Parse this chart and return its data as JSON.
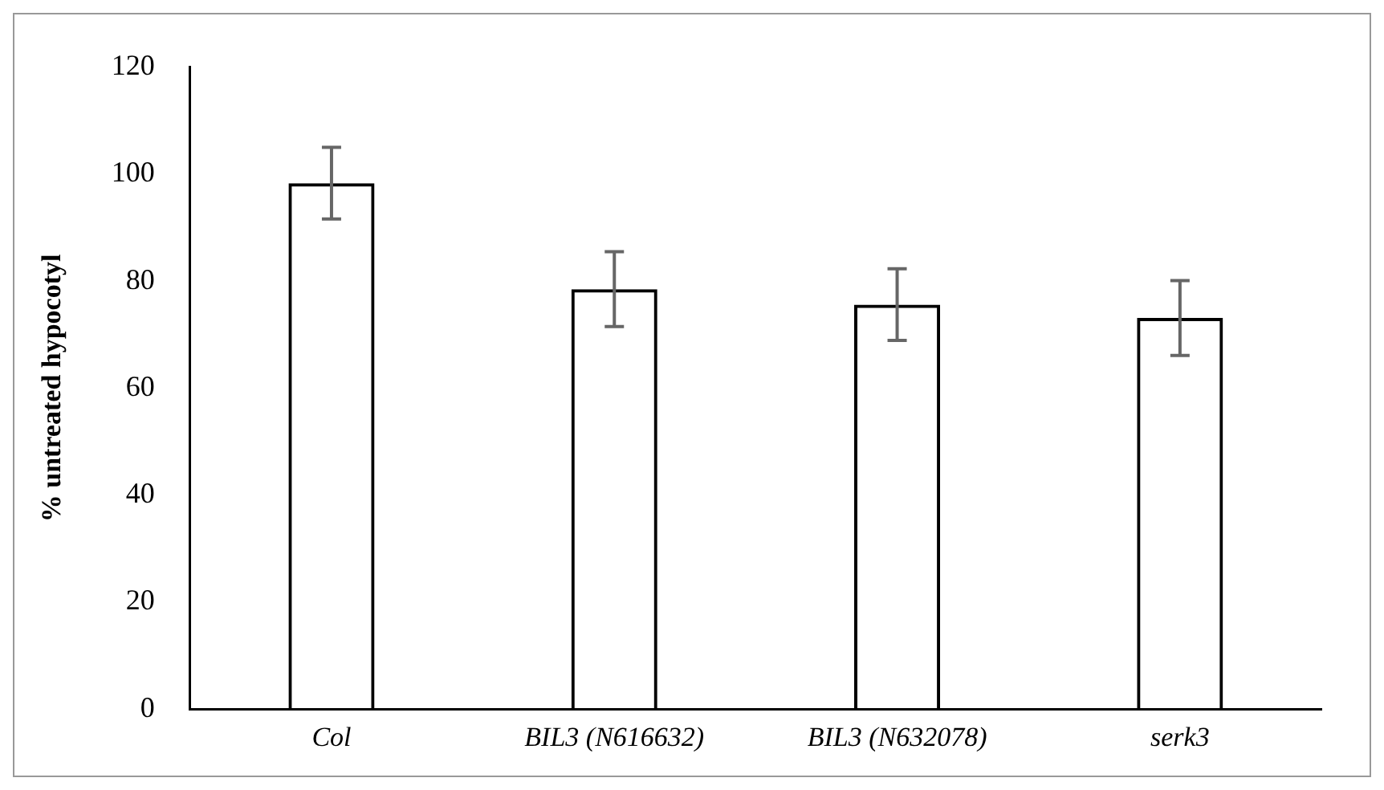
{
  "chart_data": {
    "type": "bar",
    "ylabel": "% untreated hypocotyl",
    "categories": [
      "Col",
      "BIL3 (N616632)",
      "BIL3 (N632078)",
      "serk3"
    ],
    "values": [
      98.3,
      78.5,
      75.6,
      73.1
    ],
    "errors": [
      6.7,
      7,
      6.7,
      7
    ],
    "colors": [
      "#000000",
      "#000000",
      "#000000",
      "#000000"
    ],
    "ylim": [
      0,
      120
    ],
    "yticks": [
      0,
      20,
      40,
      60,
      80,
      100,
      120
    ],
    "grid": false,
    "legend": false
  }
}
